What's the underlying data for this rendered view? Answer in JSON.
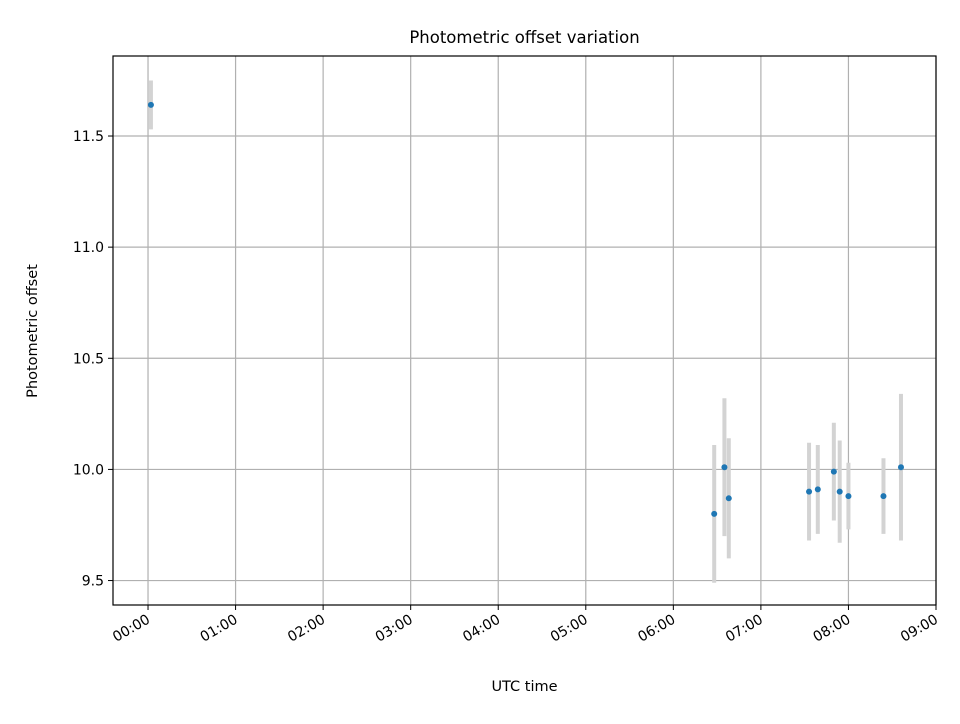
{
  "chart_data": {
    "type": "scatter",
    "title": "Photometric offset variation",
    "xlabel": "UTC time",
    "ylabel": "Photometric offset",
    "x_tick_labels": [
      "00:00",
      "01:00",
      "02:00",
      "03:00",
      "04:00",
      "05:00",
      "06:00",
      "07:00",
      "08:00",
      "09:00"
    ],
    "y_tick_labels": [
      "9.5",
      "10.0",
      "10.5",
      "11.0",
      "11.5"
    ],
    "xlim": [
      "23:36",
      "09:00"
    ],
    "ylim": [
      9.39,
      11.86
    ],
    "grid": true,
    "legend": "none",
    "marker_color": "#1f77b4",
    "errorbar_color": "#d3d3d3",
    "points": [
      {
        "x": "00:02",
        "y": 11.64,
        "err": 0.11
      },
      {
        "x": "06:28",
        "y": 9.8,
        "err": 0.31
      },
      {
        "x": "06:35",
        "y": 10.01,
        "err": 0.31
      },
      {
        "x": "06:38",
        "y": 9.87,
        "err": 0.27
      },
      {
        "x": "07:33",
        "y": 9.9,
        "err": 0.22
      },
      {
        "x": "07:39",
        "y": 9.91,
        "err": 0.2
      },
      {
        "x": "07:50",
        "y": 9.99,
        "err": 0.22
      },
      {
        "x": "07:54",
        "y": 9.9,
        "err": 0.23
      },
      {
        "x": "08:00",
        "y": 9.88,
        "err": 0.15
      },
      {
        "x": "08:24",
        "y": 9.88,
        "err": 0.17
      },
      {
        "x": "08:36",
        "y": 10.01,
        "err": 0.33
      }
    ]
  }
}
